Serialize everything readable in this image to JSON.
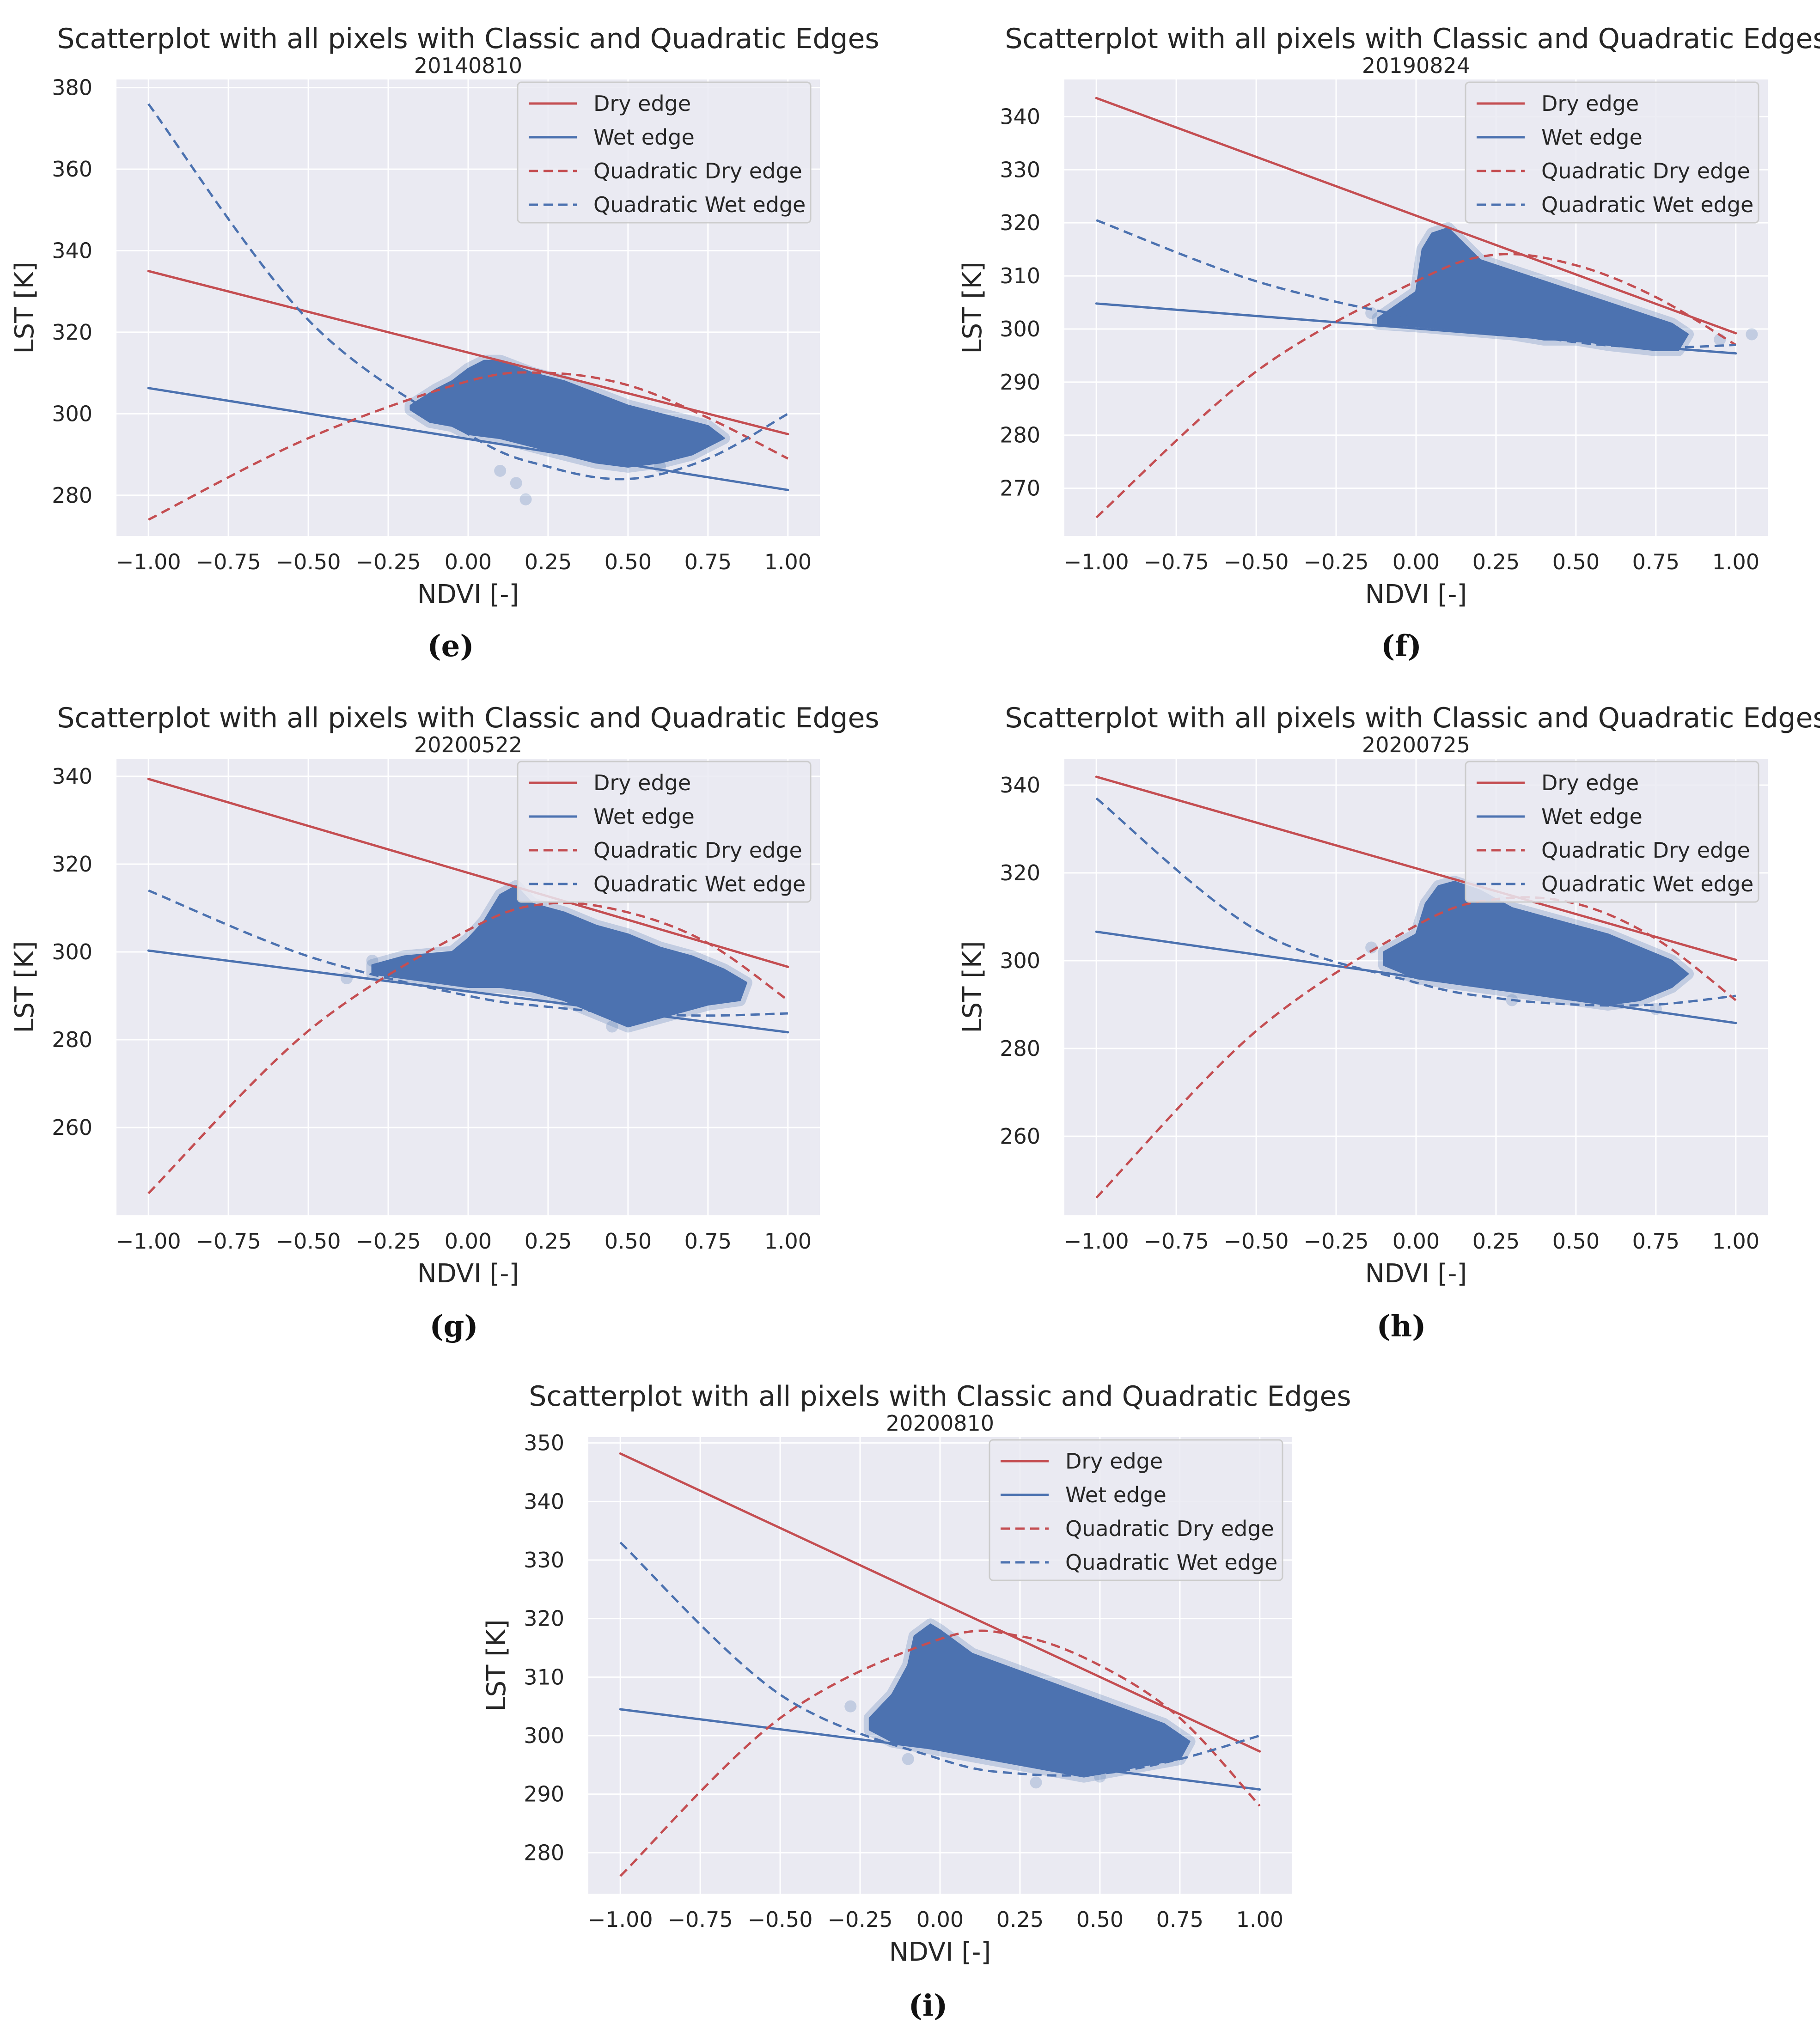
{
  "figure": {
    "panel_labels": [
      "e",
      "f",
      "g",
      "h",
      "i"
    ],
    "colors": {
      "plot_bg": "#eaeaf2",
      "grid": "#ffffff",
      "dry": "#c44e52",
      "wet": "#4c72b0",
      "scatter": "#4c72b0",
      "text": "#262626"
    }
  },
  "chart_data": [
    {
      "type": "scatter",
      "panel": "e",
      "title": "Scatterplot with all pixels with Classic and Quadratic Edges",
      "subtitle": "20140810",
      "xlabel": "NDVI [-]",
      "ylabel": "LST [K]",
      "xlim": [
        -1.1,
        1.1
      ],
      "ylim": [
        270,
        382
      ],
      "xticks": [
        -1.0,
        -0.75,
        -0.5,
        -0.25,
        0.0,
        0.25,
        0.5,
        0.75,
        1.0
      ],
      "xtick_labels": [
        "−1.00",
        "−0.75",
        "−0.50",
        "−0.25",
        "0.00",
        "0.25",
        "0.50",
        "0.75",
        "1.00"
      ],
      "yticks": [
        280,
        300,
        320,
        340,
        360,
        380
      ],
      "ytick_labels": [
        "280",
        "300",
        "320",
        "340",
        "360",
        "380"
      ],
      "legend": {
        "position": "top-right",
        "entries": [
          "Dry edge",
          "Wet edge",
          "Quadratic Dry edge",
          "Quadratic Wet edge"
        ]
      },
      "dry_edge": {
        "x": [
          -1,
          1
        ],
        "y": [
          335,
          295
        ]
      },
      "wet_edge": {
        "x": [
          -1,
          1
        ],
        "y": [
          306.3,
          281.3
        ]
      },
      "quad_dry_edge": {
        "x": [
          -1,
          -0.5,
          0,
          0.25,
          0.5,
          0.75,
          1
        ],
        "y": [
          274,
          294,
          308,
          310,
          307,
          299,
          289
        ]
      },
      "quad_wet_edge": {
        "x": [
          -1,
          -0.5,
          0,
          0.25,
          0.5,
          0.75,
          1
        ],
        "y": [
          376,
          323,
          295,
          287,
          284,
          289,
          300
        ]
      },
      "scatter_cloud": {
        "upper": [
          [
            -0.18,
            302
          ],
          [
            -0.1,
            306
          ],
          [
            -0.05,
            308
          ],
          [
            0.0,
            311
          ],
          [
            0.05,
            313
          ],
          [
            0.1,
            313
          ],
          [
            0.2,
            310
          ],
          [
            0.3,
            308
          ],
          [
            0.4,
            305
          ],
          [
            0.5,
            302
          ],
          [
            0.6,
            300
          ],
          [
            0.7,
            298
          ],
          [
            0.75,
            297
          ],
          [
            0.8,
            294
          ]
        ],
        "lower": [
          [
            0.8,
            294
          ],
          [
            0.75,
            292
          ],
          [
            0.7,
            290
          ],
          [
            0.6,
            288
          ],
          [
            0.5,
            287
          ],
          [
            0.4,
            288
          ],
          [
            0.3,
            290
          ],
          [
            0.2,
            292
          ],
          [
            0.1,
            294
          ],
          [
            0.0,
            295
          ],
          [
            -0.05,
            297
          ],
          [
            -0.12,
            298
          ],
          [
            -0.18,
            301
          ]
        ],
        "outliers": [
          [
            0.1,
            286
          ],
          [
            0.15,
            283
          ],
          [
            0.18,
            279
          ],
          [
            0.6,
            287
          ]
        ]
      }
    },
    {
      "type": "scatter",
      "panel": "f",
      "title": "Scatterplot with all pixels with Classic and Quadratic Edges",
      "subtitle": "20190824",
      "xlabel": "NDVI [-]",
      "ylabel": "LST [K]",
      "xlim": [
        -1.1,
        1.1
      ],
      "ylim": [
        261,
        347
      ],
      "xticks": [
        -1.0,
        -0.75,
        -0.5,
        -0.25,
        0.0,
        0.25,
        0.5,
        0.75,
        1.0
      ],
      "xtick_labels": [
        "−1.00",
        "−0.75",
        "−0.50",
        "−0.25",
        "0.00",
        "0.25",
        "0.50",
        "0.75",
        "1.00"
      ],
      "yticks": [
        270,
        280,
        290,
        300,
        310,
        320,
        330,
        340
      ],
      "ytick_labels": [
        "270",
        "280",
        "290",
        "300",
        "310",
        "320",
        "330",
        "340"
      ],
      "legend": {
        "position": "top-right",
        "entries": [
          "Dry edge",
          "Wet edge",
          "Quadratic Dry edge",
          "Quadratic Wet edge"
        ]
      },
      "dry_edge": {
        "x": [
          -1,
          1
        ],
        "y": [
          343.5,
          299.2
        ]
      },
      "wet_edge": {
        "x": [
          -1,
          1
        ],
        "y": [
          304.8,
          295.4
        ]
      },
      "quad_dry_edge": {
        "x": [
          -1,
          -0.5,
          0,
          0.25,
          0.5,
          0.75,
          1
        ],
        "y": [
          264.5,
          292,
          309,
          314,
          312,
          306,
          297
        ]
      },
      "quad_wet_edge": {
        "x": [
          -1,
          -0.5,
          0,
          0.25,
          0.5,
          0.75,
          1
        ],
        "y": [
          320.5,
          309,
          302,
          300,
          297.5,
          296.5,
          297
        ]
      },
      "scatter_cloud": {
        "upper": [
          [
            -0.12,
            302
          ],
          [
            0.0,
            307
          ],
          [
            0.02,
            315
          ],
          [
            0.05,
            318
          ],
          [
            0.1,
            319
          ],
          [
            0.15,
            316
          ],
          [
            0.2,
            313
          ],
          [
            0.3,
            311
          ],
          [
            0.4,
            309
          ],
          [
            0.5,
            307
          ],
          [
            0.6,
            305
          ],
          [
            0.7,
            303
          ],
          [
            0.8,
            301
          ],
          [
            0.85,
            299
          ]
        ],
        "lower": [
          [
            0.85,
            299
          ],
          [
            0.82,
            296
          ],
          [
            0.75,
            296
          ],
          [
            0.6,
            297
          ],
          [
            0.5,
            298
          ],
          [
            0.4,
            298
          ],
          [
            0.3,
            299
          ],
          [
            0.2,
            299.5
          ],
          [
            0.1,
            300
          ],
          [
            0.0,
            300.5
          ],
          [
            -0.12,
            301
          ]
        ],
        "outliers": [
          [
            -0.14,
            303
          ],
          [
            1.05,
            299
          ],
          [
            0.95,
            298
          ]
        ]
      }
    },
    {
      "type": "scatter",
      "panel": "g",
      "title": "Scatterplot with all pixels with Classic and Quadratic Edges",
      "subtitle": "20200522",
      "xlabel": "NDVI [-]",
      "ylabel": "LST [K]",
      "xlim": [
        -1.1,
        1.1
      ],
      "ylim": [
        240,
        344
      ],
      "xticks": [
        -1.0,
        -0.75,
        -0.5,
        -0.25,
        0.0,
        0.25,
        0.5,
        0.75,
        1.0
      ],
      "xtick_labels": [
        "−1.00",
        "−0.75",
        "−0.50",
        "−0.25",
        "0.00",
        "0.25",
        "0.50",
        "0.75",
        "1.00"
      ],
      "yticks": [
        260,
        280,
        300,
        320,
        340
      ],
      "ytick_labels": [
        "260",
        "280",
        "300",
        "320",
        "340"
      ],
      "legend": {
        "position": "top-right",
        "entries": [
          "Dry edge",
          "Wet edge",
          "Quadratic Dry edge",
          "Quadratic Wet edge"
        ]
      },
      "dry_edge": {
        "x": [
          -1,
          1
        ],
        "y": [
          339.4,
          296.6
        ]
      },
      "wet_edge": {
        "x": [
          -1,
          1
        ],
        "y": [
          300.3,
          281.7
        ]
      },
      "quad_dry_edge": {
        "x": [
          -1,
          -0.5,
          0,
          0.25,
          0.5,
          0.75,
          1
        ],
        "y": [
          245,
          282,
          305,
          311,
          309,
          302,
          289
        ]
      },
      "quad_wet_edge": {
        "x": [
          -1,
          -0.5,
          0,
          0.25,
          0.5,
          0.75,
          1
        ],
        "y": [
          314,
          299,
          290,
          287.5,
          286,
          285.5,
          286
        ]
      },
      "scatter_cloud": {
        "upper": [
          [
            -0.3,
            297
          ],
          [
            -0.2,
            299
          ],
          [
            -0.05,
            300
          ],
          [
            0.0,
            303
          ],
          [
            0.05,
            307
          ],
          [
            0.1,
            313
          ],
          [
            0.15,
            315
          ],
          [
            0.2,
            311
          ],
          [
            0.3,
            309
          ],
          [
            0.4,
            306
          ],
          [
            0.5,
            304
          ],
          [
            0.6,
            301
          ],
          [
            0.7,
            299
          ],
          [
            0.8,
            296
          ],
          [
            0.87,
            293
          ]
        ],
        "lower": [
          [
            0.87,
            293
          ],
          [
            0.85,
            289
          ],
          [
            0.75,
            288
          ],
          [
            0.6,
            285
          ],
          [
            0.5,
            283
          ],
          [
            0.4,
            286
          ],
          [
            0.3,
            289
          ],
          [
            0.2,
            291
          ],
          [
            0.1,
            292
          ],
          [
            0.0,
            292
          ],
          [
            -0.1,
            293
          ],
          [
            -0.2,
            294
          ],
          [
            -0.3,
            295
          ]
        ],
        "outliers": [
          [
            -0.38,
            294
          ],
          [
            -0.3,
            298
          ],
          [
            0.45,
            283
          ],
          [
            0.6,
            287
          ]
        ]
      }
    },
    {
      "type": "scatter",
      "panel": "h",
      "title": "Scatterplot with all pixels with Classic and Quadratic Edges",
      "subtitle": "20200725",
      "xlabel": "NDVI [-]",
      "ylabel": "LST [K]",
      "xlim": [
        -1.1,
        1.1
      ],
      "ylim": [
        242,
        346
      ],
      "xticks": [
        -1.0,
        -0.75,
        -0.5,
        -0.25,
        0.0,
        0.25,
        0.5,
        0.75,
        1.0
      ],
      "xtick_labels": [
        "−1.00",
        "−0.75",
        "−0.50",
        "−0.25",
        "0.00",
        "0.25",
        "0.50",
        "0.75",
        "1.00"
      ],
      "yticks": [
        260,
        280,
        300,
        320,
        340
      ],
      "ytick_labels": [
        "260",
        "280",
        "300",
        "320",
        "340"
      ],
      "legend": {
        "position": "top-right",
        "entries": [
          "Dry edge",
          "Wet edge",
          "Quadratic Dry edge",
          "Quadratic Wet edge"
        ]
      },
      "dry_edge": {
        "x": [
          -1,
          1
        ],
        "y": [
          341.9,
          300.2
        ]
      },
      "wet_edge": {
        "x": [
          -1,
          1
        ],
        "y": [
          306.6,
          285.8
        ]
      },
      "quad_dry_edge": {
        "x": [
          -1,
          -0.5,
          0,
          0.25,
          0.5,
          0.75,
          1
        ],
        "y": [
          246,
          284,
          308,
          314,
          313,
          305,
          291
        ]
      },
      "quad_wet_edge": {
        "x": [
          -1,
          -0.5,
          0,
          0.25,
          0.5,
          0.75,
          1
        ],
        "y": [
          337,
          307,
          295,
          291.5,
          290,
          290,
          292
        ]
      },
      "scatter_cloud": {
        "upper": [
          [
            -0.1,
            302
          ],
          [
            0.0,
            306
          ],
          [
            0.03,
            313
          ],
          [
            0.07,
            317
          ],
          [
            0.12,
            318
          ],
          [
            0.2,
            316
          ],
          [
            0.3,
            312
          ],
          [
            0.4,
            310
          ],
          [
            0.5,
            308
          ],
          [
            0.6,
            306
          ],
          [
            0.7,
            303
          ],
          [
            0.8,
            300
          ],
          [
            0.85,
            297
          ]
        ],
        "lower": [
          [
            0.85,
            297
          ],
          [
            0.8,
            294
          ],
          [
            0.7,
            291
          ],
          [
            0.6,
            290
          ],
          [
            0.5,
            291
          ],
          [
            0.4,
            292
          ],
          [
            0.3,
            293
          ],
          [
            0.2,
            294
          ],
          [
            0.1,
            295
          ],
          [
            0.0,
            296
          ],
          [
            -0.1,
            299
          ]
        ],
        "outliers": [
          [
            -0.14,
            303
          ],
          [
            0.75,
            289
          ],
          [
            0.3,
            291
          ]
        ]
      }
    },
    {
      "type": "scatter",
      "panel": "i",
      "title": "Scatterplot with all pixels with Classic and Quadratic Edges",
      "subtitle": "20200810",
      "xlabel": "NDVI [-]",
      "ylabel": "LST [K]",
      "xlim": [
        -1.1,
        1.1
      ],
      "ylim": [
        273,
        351
      ],
      "xticks": [
        -1.0,
        -0.75,
        -0.5,
        -0.25,
        0.0,
        0.25,
        0.5,
        0.75,
        1.0
      ],
      "xtick_labels": [
        "−1.00",
        "−0.75",
        "−0.50",
        "−0.25",
        "0.00",
        "0.25",
        "0.50",
        "0.75",
        "1.00"
      ],
      "yticks": [
        280,
        290,
        300,
        310,
        320,
        330,
        340,
        350
      ],
      "ytick_labels": [
        "280",
        "290",
        "300",
        "310",
        "320",
        "330",
        "340",
        "350"
      ],
      "legend": {
        "position": "top-right",
        "entries": [
          "Dry edge",
          "Wet edge",
          "Quadratic Dry edge",
          "Quadratic Wet edge"
        ]
      },
      "dry_edge": {
        "x": [
          -1,
          1
        ],
        "y": [
          348.2,
          297.3
        ]
      },
      "wet_edge": {
        "x": [
          -1,
          1
        ],
        "y": [
          304.5,
          290.8
        ]
      },
      "quad_dry_edge": {
        "x": [
          -1,
          -0.5,
          0,
          0.25,
          0.5,
          0.75,
          1
        ],
        "y": [
          276,
          303,
          316.5,
          317,
          312,
          303,
          288
        ]
      },
      "quad_wet_edge": {
        "x": [
          -1,
          -0.5,
          0,
          0.25,
          0.5,
          0.75,
          1
        ],
        "y": [
          333,
          307,
          296,
          293.5,
          293.5,
          296,
          300
        ]
      },
      "scatter_cloud": {
        "upper": [
          [
            -0.22,
            303
          ],
          [
            -0.15,
            307
          ],
          [
            -0.1,
            312
          ],
          [
            -0.08,
            317
          ],
          [
            -0.03,
            319
          ],
          [
            0.0,
            318
          ],
          [
            0.1,
            314
          ],
          [
            0.2,
            312
          ],
          [
            0.3,
            310
          ],
          [
            0.4,
            308
          ],
          [
            0.5,
            306
          ],
          [
            0.6,
            304
          ],
          [
            0.7,
            302
          ],
          [
            0.78,
            299
          ]
        ],
        "lower": [
          [
            0.78,
            299
          ],
          [
            0.75,
            296
          ],
          [
            0.65,
            295
          ],
          [
            0.55,
            294
          ],
          [
            0.45,
            293
          ],
          [
            0.35,
            294
          ],
          [
            0.25,
            295
          ],
          [
            0.15,
            296
          ],
          [
            0.05,
            297
          ],
          [
            -0.05,
            298
          ],
          [
            -0.15,
            299
          ],
          [
            -0.22,
            301
          ]
        ],
        "outliers": [
          [
            -0.28,
            305
          ],
          [
            -0.1,
            296
          ],
          [
            0.3,
            292
          ],
          [
            0.5,
            293
          ]
        ]
      }
    }
  ]
}
